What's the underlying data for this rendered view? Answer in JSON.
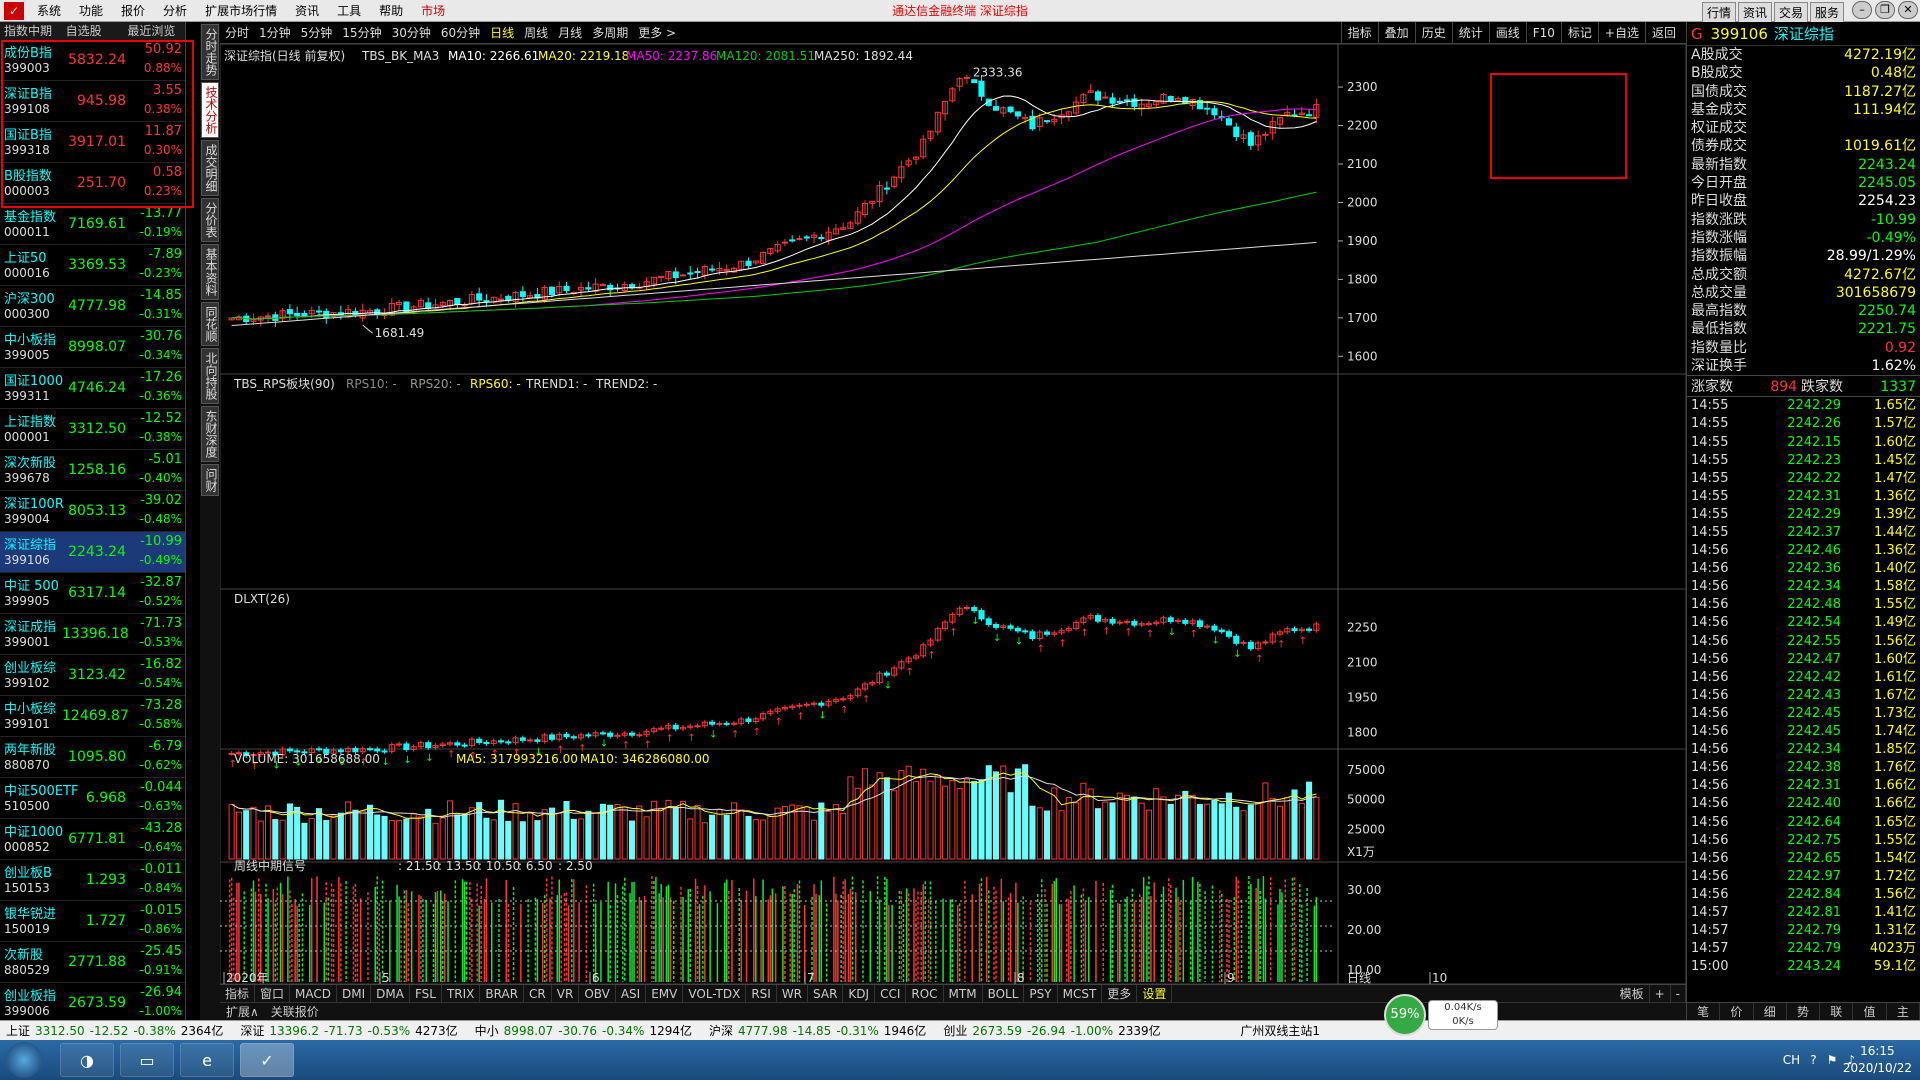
{
  "titlebar": {
    "menu": [
      "系统",
      "功能",
      "报价",
      "分析",
      "扩展市场行情",
      "资讯",
      "工具",
      "帮助",
      "市场"
    ],
    "center": "通达信金融终端  深证综指",
    "right": [
      "行情",
      "资讯",
      "交易",
      "服务"
    ]
  },
  "left": {
    "headers": [
      "指数中期",
      "自选股",
      "最近浏览"
    ],
    "stocks": [
      {
        "name": "成份B指",
        "code": "399003",
        "price": "5832.24",
        "change": "50.92",
        "pct": "0.88%",
        "up": true
      },
      {
        "name": "深证B指",
        "code": "399108",
        "price": "945.98",
        "change": "3.55",
        "pct": "0.38%",
        "up": true
      },
      {
        "name": "国证B指",
        "code": "399318",
        "price": "3917.01",
        "change": "11.87",
        "pct": "0.30%",
        "up": true
      },
      {
        "name": "B股指数",
        "code": "000003",
        "price": "251.70",
        "change": "0.58",
        "pct": "0.23%",
        "up": true
      },
      {
        "name": "基金指数",
        "code": "000011",
        "price": "7169.61",
        "change": "-13.77",
        "pct": "-0.19%",
        "up": false
      },
      {
        "name": "上证50",
        "code": "000016",
        "price": "3369.53",
        "change": "-7.89",
        "pct": "-0.23%",
        "up": false
      },
      {
        "name": "沪深300",
        "code": "000300",
        "price": "4777.98",
        "change": "-14.85",
        "pct": "-0.31%",
        "up": false
      },
      {
        "name": "中小板指",
        "code": "399005",
        "price": "8998.07",
        "change": "-30.76",
        "pct": "-0.34%",
        "up": false
      },
      {
        "name": "国证1000",
        "code": "399311",
        "price": "4746.24",
        "change": "-17.26",
        "pct": "-0.36%",
        "up": false
      },
      {
        "name": "上证指数",
        "code": "000001",
        "price": "3312.50",
        "change": "-12.52",
        "pct": "-0.38%",
        "up": false
      },
      {
        "name": "深次新股",
        "code": "399678",
        "price": "1258.16",
        "change": "-5.01",
        "pct": "-0.40%",
        "up": false
      },
      {
        "name": "深证100R",
        "code": "399004",
        "price": "8053.13",
        "change": "-39.02",
        "pct": "-0.48%",
        "up": false
      },
      {
        "name": "深证综指",
        "code": "399106",
        "price": "2243.24",
        "change": "-10.99",
        "pct": "-0.49%",
        "up": false,
        "selected": true
      },
      {
        "name": "中证 500",
        "code": "399905",
        "price": "6317.14",
        "change": "-32.87",
        "pct": "-0.52%",
        "up": false
      },
      {
        "name": "深证成指",
        "code": "399001",
        "price": "13396.18",
        "change": "-71.73",
        "pct": "-0.53%",
        "up": false
      },
      {
        "name": "创业板综",
        "code": "399102",
        "price": "3123.42",
        "change": "-16.82",
        "pct": "-0.54%",
        "up": false
      },
      {
        "name": "中小板综",
        "code": "399101",
        "price": "12469.87",
        "change": "-73.28",
        "pct": "-0.58%",
        "up": false
      },
      {
        "name": "两年新股",
        "code": "880870",
        "price": "1095.80",
        "change": "-6.79",
        "pct": "-0.62%",
        "up": false
      },
      {
        "name": "中证500ETF",
        "code": "510500",
        "price": "6.968",
        "change": "-0.044",
        "pct": "-0.63%",
        "up": false
      },
      {
        "name": "中证1000",
        "code": "000852",
        "price": "6771.81",
        "change": "-43.28",
        "pct": "-0.64%",
        "up": false
      },
      {
        "name": "创业板B",
        "code": "150153",
        "price": "1.293",
        "change": "-0.011",
        "pct": "-0.84%",
        "up": false
      },
      {
        "name": "银华锐进",
        "code": "150019",
        "price": "1.727",
        "change": "-0.015",
        "pct": "-0.86%",
        "up": false
      },
      {
        "name": "次新股",
        "code": "880529",
        "price": "2771.88",
        "change": "-25.45",
        "pct": "-0.91%",
        "up": false
      },
      {
        "name": "创业板指",
        "code": "399006",
        "price": "2673.59",
        "change": "-26.94",
        "pct": "-1.00%",
        "up": false
      }
    ]
  },
  "vtabs": [
    "分时走势",
    "技术分析",
    "成交明细",
    "分价表",
    "基本资料",
    "同花顺",
    "北向持股",
    "东财深度",
    "问财"
  ],
  "toolbar": {
    "periods": [
      "分时",
      "1分钟",
      "5分钟",
      "15分钟",
      "30分钟",
      "60分钟",
      "日线",
      "周线",
      "月线",
      "多周期",
      "更多 >"
    ],
    "right": [
      "指标",
      "叠加",
      "历史",
      "统计",
      "画线",
      "F10",
      "标记",
      "+自选",
      "返回"
    ]
  },
  "main_legend": {
    "name": "深证综指(日线 前复权)",
    "ind": "TBS_BK_MA3",
    "ma10": "MA10: 2266.61",
    "ma20": "MA20: 2219.18",
    "ma50": "MA50: 2237.86",
    "ma120": "MA120: 2081.51",
    "ma250": "MA250: 1892.44",
    "high_label": "2333.36",
    "low_label": "1681.49"
  },
  "rps_legend": {
    "name": "TBS_RPS板块(90)",
    "a": "RPS10: -",
    "b": "RPS20: -",
    "c": "RPS60: -",
    "d": "TREND1: -",
    "e": "TREND2: -"
  },
  "dlxt_legend": "DLXT(26)",
  "vol_legend": {
    "vol": "VOLUME: 301658688.00",
    "ma5": "MA5: 317993216.00",
    "ma10": "MA10: 346286080.00"
  },
  "sig_legend": {
    "name": "周线中期信号",
    "vals": [
      ": 21.50",
      ": 13.50",
      ": 10.50",
      ": 6.50",
      ": 2.50"
    ]
  },
  "axes": {
    "main": [
      "2300",
      "2200",
      "2100",
      "2000",
      "1900",
      "1800",
      "1700",
      "1600"
    ],
    "dlxt": [
      "2250",
      "2100",
      "1950",
      "1800"
    ],
    "vol": [
      "75000",
      "50000",
      "25000"
    ],
    "vol_unit": "X1万",
    "sig": [
      "30.00",
      "20.00",
      "10.00"
    ],
    "date_label": "日线",
    "months": [
      "2020年",
      "5",
      "6",
      "7",
      "8",
      "9",
      "10"
    ]
  },
  "indicator_tabs": [
    "指标",
    "窗口",
    "MACD",
    "DMI",
    "DMA",
    "FSL",
    "TRIX",
    "BRAR",
    "CR",
    "VR",
    "OBV",
    "ASI",
    "EMV",
    "VOL-TDX",
    "RSI",
    "WR",
    "SAR",
    "KDJ",
    "CCI",
    "ROC",
    "MTM",
    "BOLL",
    "PSY",
    "MCST",
    "更多",
    "设置"
  ],
  "indicator_right": [
    "模板",
    "+",
    "-"
  ],
  "bottom_tabs": [
    "扩展∧",
    "关联报价"
  ],
  "right": {
    "g": "G",
    "code": "399106",
    "name": "深证综指",
    "stats": [
      {
        "k": "A股成交",
        "v": "4272.19亿",
        "c": "y"
      },
      {
        "k": "B股成交",
        "v": "0.48亿",
        "c": "y"
      },
      {
        "k": "国债成交",
        "v": "1187.27亿",
        "c": "y"
      },
      {
        "k": "基金成交",
        "v": "111.94亿",
        "c": "y"
      },
      {
        "k": "权证成交",
        "v": "",
        "c": "y"
      },
      {
        "k": "债券成交",
        "v": "1019.61亿",
        "c": "y"
      },
      {
        "k": "最新指数",
        "v": "2243.24",
        "c": "dn"
      },
      {
        "k": "今日开盘",
        "v": "2245.05",
        "c": "dn"
      },
      {
        "k": "昨日收盘",
        "v": "2254.23",
        "c": "w"
      },
      {
        "k": "指数涨跌",
        "v": "-10.99",
        "c": "dn"
      },
      {
        "k": "指数涨幅",
        "v": "-0.49%",
        "c": "dn"
      },
      {
        "k": "指数振幅",
        "v": "28.99/1.29%",
        "c": "w"
      },
      {
        "k": "总成交额",
        "v": "4272.67亿",
        "c": "y"
      },
      {
        "k": "总成交量",
        "v": "301658679",
        "c": "y"
      },
      {
        "k": "最高指数",
        "v": "2250.74",
        "c": "dn"
      },
      {
        "k": "最低指数",
        "v": "2221.75",
        "c": "dn"
      },
      {
        "k": "指数量比",
        "v": "0.92",
        "c": "up"
      },
      {
        "k": "深证换手",
        "v": "1.62%",
        "c": "w"
      }
    ],
    "updown": {
      "k1": "涨家数",
      "v1": "894",
      "k2": "跌家数",
      "v2": "1337"
    },
    "ticks": [
      {
        "t": "14:55",
        "p": "2242.29",
        "a": "1.65亿"
      },
      {
        "t": "14:55",
        "p": "2242.26",
        "a": "1.57亿"
      },
      {
        "t": "14:55",
        "p": "2242.15",
        "a": "1.60亿"
      },
      {
        "t": "14:55",
        "p": "2242.23",
        "a": "1.45亿"
      },
      {
        "t": "14:55",
        "p": "2242.22",
        "a": "1.47亿"
      },
      {
        "t": "14:55",
        "p": "2242.31",
        "a": "1.36亿"
      },
      {
        "t": "14:55",
        "p": "2242.29",
        "a": "1.39亿"
      },
      {
        "t": "14:55",
        "p": "2242.37",
        "a": "1.44亿"
      },
      {
        "t": "14:56",
        "p": "2242.46",
        "a": "1.36亿"
      },
      {
        "t": "14:56",
        "p": "2242.36",
        "a": "1.40亿"
      },
      {
        "t": "14:56",
        "p": "2242.34",
        "a": "1.58亿"
      },
      {
        "t": "14:56",
        "p": "2242.48",
        "a": "1.55亿"
      },
      {
        "t": "14:56",
        "p": "2242.54",
        "a": "1.49亿"
      },
      {
        "t": "14:56",
        "p": "2242.55",
        "a": "1.56亿"
      },
      {
        "t": "14:56",
        "p": "2242.47",
        "a": "1.60亿"
      },
      {
        "t": "14:56",
        "p": "2242.42",
        "a": "1.61亿"
      },
      {
        "t": "14:56",
        "p": "2242.43",
        "a": "1.67亿"
      },
      {
        "t": "14:56",
        "p": "2242.45",
        "a": "1.73亿"
      },
      {
        "t": "14:56",
        "p": "2242.45",
        "a": "1.74亿"
      },
      {
        "t": "14:56",
        "p": "2242.34",
        "a": "1.85亿"
      },
      {
        "t": "14:56",
        "p": "2242.38",
        "a": "1.76亿"
      },
      {
        "t": "14:56",
        "p": "2242.31",
        "a": "1.66亿"
      },
      {
        "t": "14:56",
        "p": "2242.40",
        "a": "1.66亿"
      },
      {
        "t": "14:56",
        "p": "2242.64",
        "a": "1.65亿"
      },
      {
        "t": "14:56",
        "p": "2242.75",
        "a": "1.55亿"
      },
      {
        "t": "14:56",
        "p": "2242.65",
        "a": "1.54亿"
      },
      {
        "t": "14:56",
        "p": "2242.97",
        "a": "1.72亿"
      },
      {
        "t": "14:56",
        "p": "2242.84",
        "a": "1.56亿"
      },
      {
        "t": "14:57",
        "p": "2242.81",
        "a": "1.41亿"
      },
      {
        "t": "14:57",
        "p": "2242.79",
        "a": "1.31亿"
      },
      {
        "t": "14:57",
        "p": "2242.79",
        "a": "4023万"
      },
      {
        "t": "15:00",
        "p": "2243.24",
        "a": "59.1亿"
      }
    ],
    "bottom": [
      "笔",
      "价",
      "细",
      "势",
      "联",
      "值",
      "主"
    ]
  },
  "indexbar": [
    {
      "name": "上证",
      "val": "3312.50",
      "chg": "-12.52",
      "pct": "-0.38%",
      "amt": "2364亿"
    },
    {
      "name": "深证",
      "val": "13396.2",
      "chg": "-71.73",
      "pct": "-0.53%",
      "amt": "4273亿"
    },
    {
      "name": "中小",
      "val": "8998.07",
      "chg": "-30.76",
      "pct": "-0.34%",
      "amt": "1294亿"
    },
    {
      "name": "沪深",
      "val": "4777.98",
      "chg": "-14.85",
      "pct": "-0.31%",
      "amt": "1946亿"
    },
    {
      "name": "创业",
      "val": "2673.59",
      "chg": "-26.94",
      "pct": "-1.00%",
      "amt": "2339亿"
    }
  ],
  "server": "广州双线主站1",
  "net": {
    "pct": "59%",
    "up": "0.04K/s",
    "down": "0K/s"
  },
  "taskbar": {
    "lang": "CH",
    "time": "16:15",
    "date": "2020/10/22"
  },
  "colors": {
    "up": "#ff3333",
    "down": "#00ff00",
    "cyan": "#00ffff",
    "yellow": "#ffff00",
    "ma10": "#ffffff",
    "ma20": "#ffff00",
    "ma50": "#ff00ff",
    "ma120": "#00cc00",
    "ma250": "#dddddd"
  }
}
